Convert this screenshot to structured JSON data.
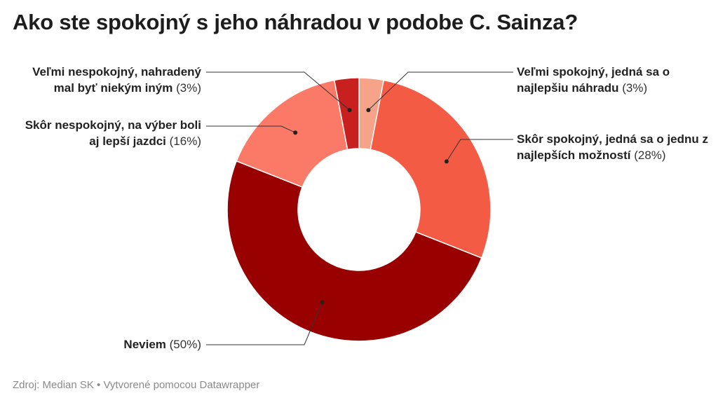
{
  "title": "Ako ste spokojný s jeho náhradou v podobe C. Sainza?",
  "footer": "Zdroj: Median SK • Vytvorené pomocou Datawrapper",
  "chart_data": {
    "type": "pie",
    "donut": true,
    "start_angle_deg": 0,
    "title": "Ako ste spokojný s jeho náhradou v podobe C. Sainza?",
    "slices": [
      {
        "label": "Veľmi spokojný, jedná sa o najlepšiu náhradu",
        "pct_label": "(3%)",
        "value": 3,
        "color": "#f7a38a"
      },
      {
        "label": "Skôr spokojný, jedná sa o jednu z najlepších možností",
        "pct_label": "(28%)",
        "value": 28,
        "color": "#f45b45"
      },
      {
        "label": "Neviem",
        "pct_label": "(50%)",
        "value": 50,
        "color": "#990000"
      },
      {
        "label": "Skôr nespokojný, na výber boli aj lepší jazdci",
        "pct_label": "(16%)",
        "value": 16,
        "color": "#fa7a67"
      },
      {
        "label": "Veľmi nespokojný, nahradený mal byť niekým iným",
        "pct_label": "(3%)",
        "value": 3,
        "color": "#c81f1f"
      }
    ]
  }
}
